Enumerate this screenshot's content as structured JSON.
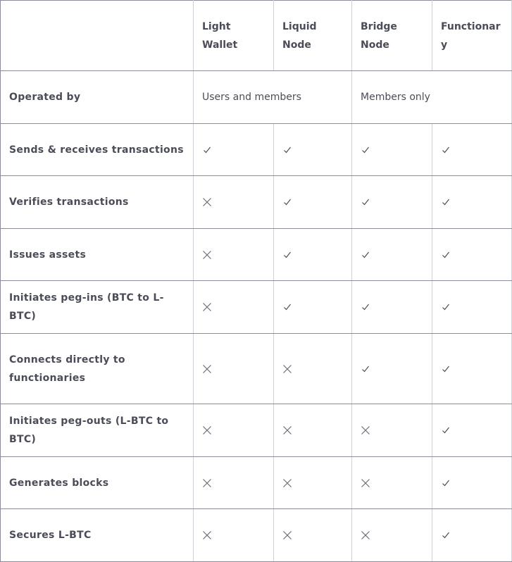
{
  "columns": [
    "",
    "Light Wallet",
    "Liquid Node",
    "Bridge Node",
    "Functionary"
  ],
  "operated_by": {
    "label": "Operated by",
    "groups": [
      {
        "text": "Users and members",
        "span": 2
      },
      {
        "text": "Members only",
        "span": 2
      }
    ]
  },
  "rows": [
    {
      "label": "Sends & receives transactions",
      "values": [
        true,
        true,
        true,
        true
      ]
    },
    {
      "label": "Verifies transactions",
      "values": [
        false,
        true,
        true,
        true
      ]
    },
    {
      "label": "Issues assets",
      "values": [
        false,
        true,
        true,
        true
      ]
    },
    {
      "label": "Initiates peg-ins (BTC to L-BTC)",
      "values": [
        false,
        true,
        true,
        true
      ]
    },
    {
      "label": "Connects directly to functionaries",
      "values": [
        false,
        false,
        true,
        true
      ]
    },
    {
      "label": "Initiates peg-outs (L-BTC to BTC)",
      "values": [
        false,
        false,
        false,
        true
      ]
    },
    {
      "label": "Generates blocks",
      "values": [
        false,
        false,
        false,
        true
      ]
    },
    {
      "label": "Secures L-BTC",
      "values": [
        false,
        false,
        false,
        true
      ]
    }
  ],
  "icons": {
    "yes": "check-icon",
    "no": "cross-icon"
  },
  "colors": {
    "text": "#4a4d57",
    "row_border": "#8a8d97",
    "col_border": "#d0d0d8"
  }
}
